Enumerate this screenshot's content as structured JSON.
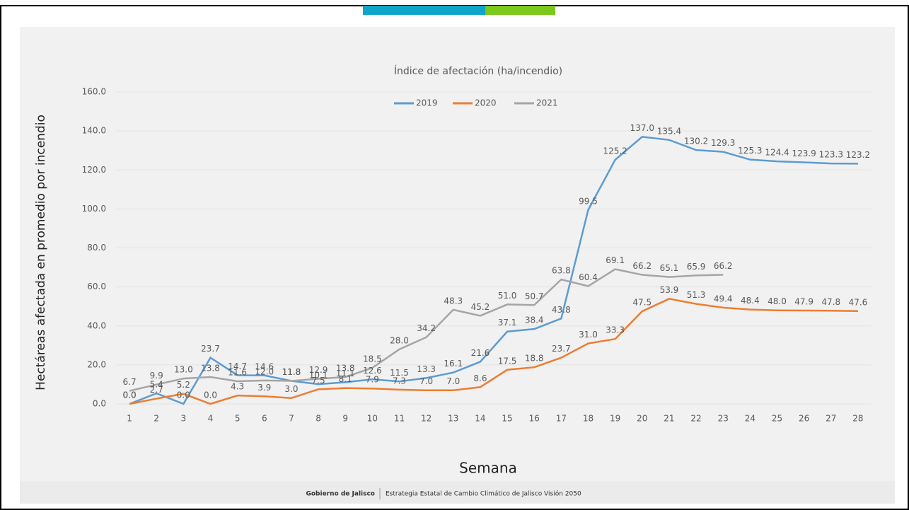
{
  "chart_data": {
    "type": "line",
    "title": "Índice de afectación (ha/incendio)",
    "x_label": "Semana",
    "y_label": "Hectáreas afectada en promedio por incendio",
    "categories": [
      "1",
      "2",
      "3",
      "4",
      "5",
      "6",
      "7",
      "8",
      "9",
      "10",
      "11",
      "12",
      "13",
      "14",
      "15",
      "16",
      "17",
      "18",
      "19",
      "20",
      "21",
      "22",
      "23",
      "24",
      "25",
      "26",
      "27",
      "28"
    ],
    "series": [
      {
        "name": "2019",
        "color": "#5b9bd5",
        "values": [
          0,
          5.4,
          0,
          23.7,
          14.7,
          14.6,
          11.8,
          10.1,
          11.1,
          12.6,
          11.5,
          13.3,
          16.1,
          21.6,
          37.1,
          38.4,
          43.8,
          99.5,
          125.2,
          137,
          135.4,
          130.2,
          129.3,
          125.3,
          124.4,
          123.9,
          123.3,
          123.2
        ],
        "value_labels": [
          "0.0",
          "5.4",
          "0.0",
          "23.7",
          "14.7",
          "14.6",
          "11.8",
          "10.1",
          "11.1",
          "12.6",
          "11.5",
          "13.3",
          "16.1",
          "21.6",
          "37.1",
          "38.4",
          "43.8",
          "99.5",
          "125.2",
          "137.0",
          "135.4",
          "130.2",
          "129.3",
          "125.3",
          "124.4",
          "123.9",
          "123.3",
          "123.2"
        ]
      },
      {
        "name": "2020",
        "color": "#ed7d31",
        "values": [
          0,
          2.7,
          5.2,
          0,
          4.3,
          3.9,
          3,
          7.5,
          8.1,
          7.9,
          7.3,
          7,
          7,
          8.6,
          17.5,
          18.8,
          23.7,
          31,
          33.3,
          47.5,
          53.9,
          51.3,
          49.4,
          48.4,
          48,
          47.9,
          47.8,
          47.6
        ],
        "value_labels": [
          "0.0",
          "2.7",
          "5.2",
          "0.0",
          "4.3",
          "3.9",
          "3.0",
          "7.5",
          "8.1",
          "7.9",
          "7.3",
          "7.0",
          "7.0",
          "8.6",
          "17.5",
          "18.8",
          "23.7",
          "31.0",
          "33.3",
          "47.5",
          "53.9",
          "51.3",
          "49.4",
          "48.4",
          "48.0",
          "47.9",
          "47.8",
          "47.6"
        ]
      },
      {
        "name": "2021",
        "color": "#a5a5a5",
        "values": [
          6.7,
          9.9,
          13,
          13.8,
          11.6,
          12,
          11.8,
          12.9,
          13.8,
          18.5,
          28,
          34.2,
          48.3,
          45.2,
          51,
          50.7,
          63.8,
          60.4,
          69.1,
          66.2,
          65.1,
          65.9,
          66.2,
          null,
          null,
          null,
          null,
          null
        ],
        "value_labels": [
          "6.7",
          "9.9",
          "13.0",
          "13.8",
          "11.6",
          "12.0",
          "11.8",
          "12.9",
          "13.8",
          "18.5",
          "28.0",
          "34.2",
          "48.3",
          "45.2",
          "51.0",
          "50.7",
          "63.8",
          "60.4",
          "69.1",
          "66.2",
          "65.1",
          "65.9",
          "66.2",
          null,
          null,
          null,
          null,
          null
        ]
      }
    ],
    "ylim": [
      0,
      160
    ],
    "yticks": [
      {
        "value": 0,
        "label": "0.0"
      },
      {
        "value": 20,
        "label": "20.0"
      },
      {
        "value": 40,
        "label": "40.0"
      },
      {
        "value": 60,
        "label": "60.0"
      },
      {
        "value": 80,
        "label": "80.0"
      },
      {
        "value": 100,
        "label": "100.0"
      },
      {
        "value": 120,
        "label": "120.0"
      },
      {
        "value": 140,
        "label": "140.0"
      },
      {
        "value": 160,
        "label": "160.0"
      }
    ],
    "grid": true,
    "legend": "top"
  },
  "footer": {
    "organization": "Gobierno de Jalisco",
    "text": "Estrategia Estatal de Cambio Climático de Jalisco Visión 2050"
  }
}
